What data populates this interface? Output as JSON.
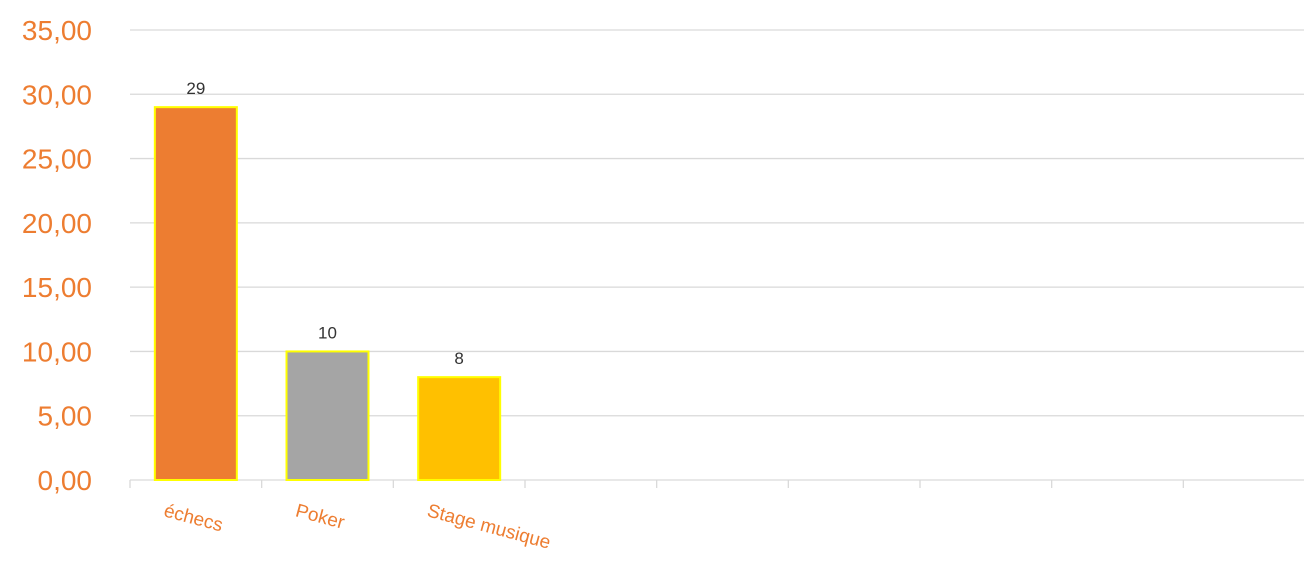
{
  "chart_data": {
    "type": "bar",
    "categories": [
      "échecs",
      "Poker",
      "Stage musique",
      "",
      "",
      "",
      "",
      "",
      ""
    ],
    "values": [
      29,
      10,
      8,
      null,
      null,
      null,
      null,
      null,
      null
    ],
    "data_labels": [
      "29",
      "10",
      "8",
      "",
      "",
      "",
      "",
      "",
      ""
    ],
    "bar_colors": [
      "#ED7D31",
      "#A5A5A5",
      "#FFC000"
    ],
    "bar_border_color": "#FFFF00",
    "ylim": [
      0,
      35
    ],
    "yticks": [
      0,
      5,
      10,
      15,
      20,
      25,
      30,
      35
    ],
    "ytick_labels": [
      "0,00",
      "5,00",
      "10,00",
      "15,00",
      "20,00",
      "25,00",
      "30,00",
      "35,00"
    ],
    "axis_text_color": "#ED7D31",
    "grid": true,
    "grid_color": "#D9D9D9",
    "title": "",
    "xlabel": "",
    "ylabel": ""
  }
}
